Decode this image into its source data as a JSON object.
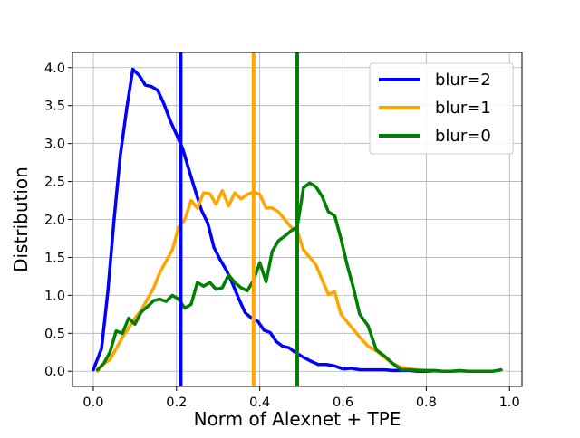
{
  "chart_data": {
    "type": "line",
    "title": "",
    "xlabel": "Norm of Alexnet + TPE",
    "ylabel": "Distribution",
    "xlim": [
      -0.05,
      1.03
    ],
    "ylim": [
      -0.2,
      4.2
    ],
    "xticks": [
      0.0,
      0.2,
      0.4,
      0.6,
      0.8,
      1.0
    ],
    "xtick_labels": [
      "0.0",
      "0.2",
      "0.4",
      "0.6",
      "0.8",
      "1.0"
    ],
    "yticks": [
      0.0,
      0.5,
      1.0,
      1.5,
      2.0,
      2.5,
      3.0,
      3.5,
      4.0
    ],
    "ytick_labels": [
      "0.0",
      "0.5",
      "1.0",
      "1.5",
      "2.0",
      "2.5",
      "3.0",
      "3.5",
      "4.0"
    ],
    "grid": true,
    "legend_position": "top-right",
    "series": [
      {
        "name": "blur=2",
        "color": "#0000ff",
        "vline": 0.21,
        "x": [
          0.0,
          0.02,
          0.035,
          0.05,
          0.065,
          0.08,
          0.095,
          0.11,
          0.125,
          0.14,
          0.155,
          0.17,
          0.185,
          0.2,
          0.215,
          0.23,
          0.245,
          0.26,
          0.275,
          0.29,
          0.305,
          0.32,
          0.335,
          0.35,
          0.365,
          0.38,
          0.395,
          0.41,
          0.425,
          0.44,
          0.455,
          0.47,
          0.485,
          0.5,
          0.52,
          0.54,
          0.56,
          0.58,
          0.6,
          0.62,
          0.64,
          0.66,
          0.68,
          0.7,
          0.72,
          0.74,
          0.76,
          0.78,
          0.8,
          0.82,
          0.84,
          0.86,
          0.88
        ],
        "y": [
          0.02,
          0.3,
          1.05,
          2.0,
          2.85,
          3.45,
          3.98,
          3.9,
          3.77,
          3.75,
          3.7,
          3.52,
          3.3,
          3.12,
          2.93,
          2.65,
          2.38,
          2.12,
          1.95,
          1.63,
          1.47,
          1.33,
          1.15,
          0.95,
          0.77,
          0.7,
          0.66,
          0.54,
          0.51,
          0.39,
          0.33,
          0.31,
          0.25,
          0.2,
          0.14,
          0.09,
          0.09,
          0.07,
          0.03,
          0.04,
          0.02,
          0.02,
          0.02,
          0.02,
          0.01,
          0.01,
          0.01,
          0.0,
          0.0,
          0.0,
          0.0,
          0.0,
          0.0
        ]
      },
      {
        "name": "blur=1",
        "color": "#ffa500",
        "vline": 0.385,
        "x": [
          0.01,
          0.025,
          0.04,
          0.055,
          0.07,
          0.085,
          0.1,
          0.115,
          0.13,
          0.145,
          0.16,
          0.175,
          0.19,
          0.205,
          0.22,
          0.235,
          0.25,
          0.265,
          0.28,
          0.295,
          0.31,
          0.325,
          0.34,
          0.355,
          0.37,
          0.385,
          0.4,
          0.415,
          0.43,
          0.445,
          0.46,
          0.475,
          0.49,
          0.505,
          0.52,
          0.535,
          0.55,
          0.565,
          0.58,
          0.595,
          0.61,
          0.625,
          0.64,
          0.66,
          0.68,
          0.7,
          0.72,
          0.74,
          0.76,
          0.78,
          0.8,
          0.82,
          0.84,
          0.86,
          0.88,
          0.9
        ],
        "y": [
          0.0,
          0.1,
          0.15,
          0.3,
          0.45,
          0.57,
          0.7,
          0.8,
          0.95,
          1.1,
          1.3,
          1.45,
          1.6,
          1.9,
          2.0,
          2.25,
          2.15,
          2.35,
          2.34,
          2.2,
          2.38,
          2.18,
          2.35,
          2.27,
          2.33,
          2.36,
          2.33,
          2.15,
          2.15,
          2.1,
          2.0,
          1.9,
          1.84,
          1.6,
          1.5,
          1.4,
          1.2,
          1.01,
          1.05,
          0.75,
          0.65,
          0.55,
          0.45,
          0.33,
          0.27,
          0.18,
          0.1,
          0.05,
          0.03,
          0.02,
          0.01,
          0.0,
          0.0,
          0.0,
          0.0,
          0.0
        ]
      },
      {
        "name": "blur=0",
        "color": "#008000",
        "vline": 0.49,
        "x": [
          0.01,
          0.025,
          0.04,
          0.055,
          0.07,
          0.085,
          0.1,
          0.115,
          0.13,
          0.145,
          0.16,
          0.175,
          0.19,
          0.205,
          0.22,
          0.235,
          0.25,
          0.265,
          0.28,
          0.295,
          0.31,
          0.325,
          0.34,
          0.355,
          0.37,
          0.385,
          0.4,
          0.415,
          0.43,
          0.445,
          0.46,
          0.475,
          0.49,
          0.505,
          0.52,
          0.535,
          0.55,
          0.565,
          0.58,
          0.595,
          0.61,
          0.625,
          0.64,
          0.66,
          0.68,
          0.7,
          0.72,
          0.74,
          0.76,
          0.78,
          0.8,
          0.82,
          0.84,
          0.86,
          0.88,
          0.9,
          0.92,
          0.94,
          0.96,
          0.98
        ],
        "y": [
          0.02,
          0.1,
          0.25,
          0.53,
          0.5,
          0.7,
          0.62,
          0.78,
          0.85,
          0.93,
          0.95,
          0.92,
          1.0,
          0.95,
          0.83,
          0.88,
          1.17,
          1.12,
          1.17,
          1.08,
          1.1,
          1.27,
          1.17,
          1.1,
          1.06,
          1.2,
          1.43,
          1.18,
          1.58,
          1.72,
          1.78,
          1.85,
          1.9,
          2.42,
          2.48,
          2.43,
          2.3,
          2.1,
          2.05,
          1.75,
          1.4,
          1.1,
          0.75,
          0.6,
          0.28,
          0.2,
          0.1,
          0.02,
          0.02,
          0.01,
          0.01,
          0.01,
          0.0,
          0.0,
          0.01,
          0.0,
          0.0,
          0.0,
          0.0,
          0.02
        ]
      }
    ]
  }
}
